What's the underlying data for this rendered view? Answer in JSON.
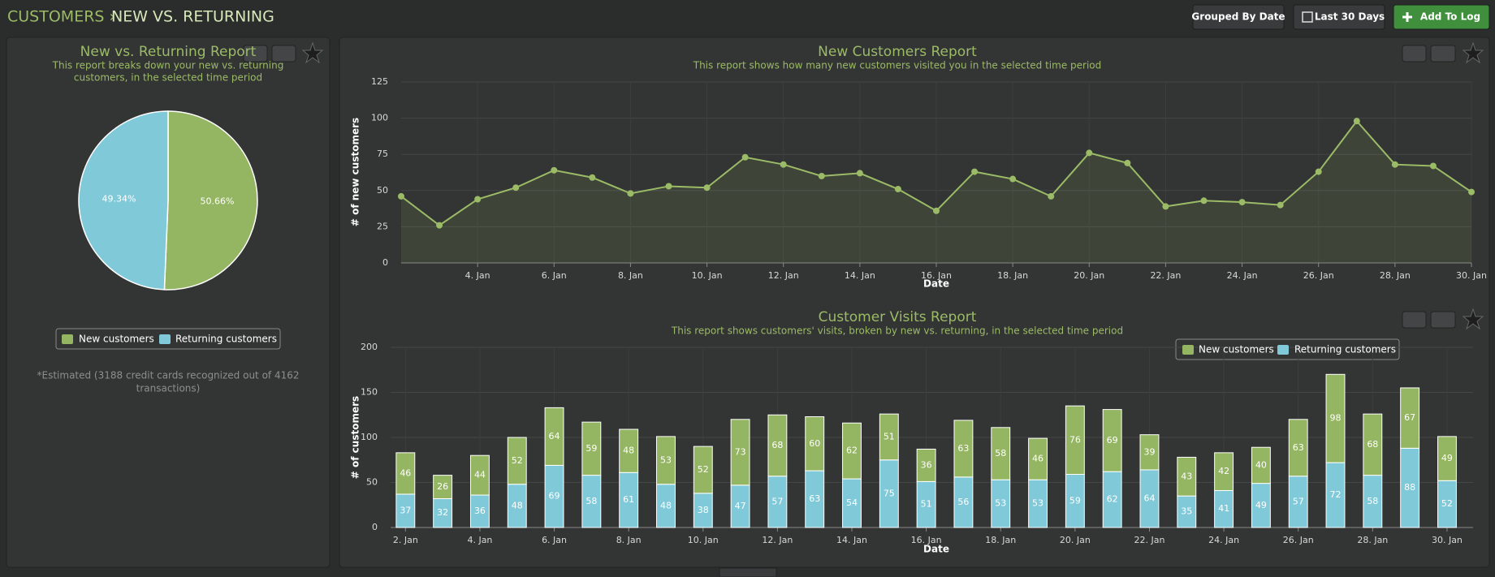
{
  "header": {
    "breadcrumb_parent": "CUSTOMERS ›",
    "breadcrumb_current": "NEW VS. RETURNING"
  },
  "buttons": [
    "Grouped By Date",
    "Last 30 Days",
    "Add To Log"
  ],
  "note_lines": [
    "*Estimated (3188 credit cards recognized out of 4162",
    "transactions)"
  ],
  "chart_data": [
    {
      "type": "pie",
      "title": "New vs. Returning Report",
      "subtitle_lines": [
        "This report breaks down your new vs. returning",
        "customers, in the selected time period"
      ],
      "categories": [
        "New customers",
        "Returning customers"
      ],
      "values": [
        50.66,
        49.34
      ],
      "value_labels": [
        "50.66%",
        "49.34%"
      ],
      "colors": [
        "#94b561",
        "#7fc9d9"
      ]
    },
    {
      "type": "line",
      "title": "New Customers Report",
      "subtitle": "This report shows how many new customers visited you in the selected time period",
      "x_label": "Date",
      "y_label": "# of new customers",
      "color": "#9bbb66",
      "x": [
        2,
        3,
        4,
        5,
        6,
        7,
        8,
        9,
        10,
        11,
        12,
        13,
        14,
        15,
        16,
        17,
        18,
        19,
        20,
        21,
        22,
        23,
        24,
        25,
        26,
        27,
        28,
        29,
        30
      ],
      "values": [
        46,
        26,
        44,
        52,
        64,
        59,
        48,
        53,
        52,
        73,
        68,
        60,
        62,
        51,
        36,
        63,
        58,
        46,
        76,
        69,
        39,
        43,
        42,
        40,
        63,
        98,
        68,
        67,
        49
      ],
      "xlim": [
        2,
        30
      ],
      "xticks": [
        {
          "value": 4,
          "label": "4. Jan"
        },
        {
          "value": 6,
          "label": "6. Jan"
        },
        {
          "value": 8,
          "label": "8. Jan"
        },
        {
          "value": 10,
          "label": "10. Jan"
        },
        {
          "value": 12,
          "label": "12. Jan"
        },
        {
          "value": 14,
          "label": "14. Jan"
        },
        {
          "value": 16,
          "label": "16. Jan"
        },
        {
          "value": 18,
          "label": "18. Jan"
        },
        {
          "value": 20,
          "label": "20. Jan"
        },
        {
          "value": 22,
          "label": "22. Jan"
        },
        {
          "value": 24,
          "label": "24. Jan"
        },
        {
          "value": 26,
          "label": "26. Jan"
        },
        {
          "value": 28,
          "label": "28. Jan"
        },
        {
          "value": 30,
          "label": "30. Jan"
        }
      ],
      "ylim": [
        0,
        125
      ],
      "yticks": [
        0,
        25,
        50,
        75,
        100,
        125
      ],
      "grid": true
    },
    {
      "type": "stacked_bar",
      "title": "Customer Visits Report",
      "subtitle": "This report shows customers' visits, broken by new vs. returning, in the selected time period",
      "x_label": "Date",
      "y_label": "# of customers",
      "x": [
        2,
        3,
        4,
        5,
        6,
        7,
        8,
        9,
        10,
        11,
        12,
        13,
        14,
        15,
        16,
        17,
        18,
        19,
        20,
        21,
        22,
        23,
        24,
        25,
        26,
        27,
        28,
        29,
        30
      ],
      "series": [
        {
          "name": "New customers",
          "color": "#94b561",
          "values": [
            46,
            26,
            44,
            52,
            64,
            59,
            48,
            53,
            52,
            73,
            68,
            60,
            62,
            51,
            36,
            63,
            58,
            46,
            76,
            69,
            39,
            43,
            42,
            40,
            63,
            98,
            68,
            67,
            49
          ]
        },
        {
          "name": "Returning customers",
          "color": "#7fc9d9",
          "values": [
            37,
            32,
            36,
            48,
            69,
            58,
            61,
            48,
            38,
            47,
            57,
            63,
            54,
            75,
            51,
            56,
            53,
            53,
            59,
            62,
            64,
            35,
            41,
            49,
            57,
            72,
            58,
            88,
            52
          ]
        }
      ],
      "xlim": [
        1.6,
        30.7
      ],
      "xticks": [
        {
          "value": 2,
          "label": "2. Jan"
        },
        {
          "value": 4,
          "label": "4. Jan"
        },
        {
          "value": 6,
          "label": "6. Jan"
        },
        {
          "value": 8,
          "label": "8. Jan"
        },
        {
          "value": 10,
          "label": "10. Jan"
        },
        {
          "value": 12,
          "label": "12. Jan"
        },
        {
          "value": 14,
          "label": "14. Jan"
        },
        {
          "value": 16,
          "label": "16. Jan"
        },
        {
          "value": 18,
          "label": "18. Jan"
        },
        {
          "value": 20,
          "label": "20. Jan"
        },
        {
          "value": 22,
          "label": "22. Jan"
        },
        {
          "value": 24,
          "label": "24. Jan"
        },
        {
          "value": 26,
          "label": "26. Jan"
        },
        {
          "value": 28,
          "label": "28. Jan"
        },
        {
          "value": 30,
          "label": "30. Jan"
        }
      ],
      "ylim": [
        0,
        200
      ],
      "yticks": [
        0,
        50,
        100,
        150,
        200
      ],
      "grid": true,
      "legend": "top-right"
    }
  ]
}
